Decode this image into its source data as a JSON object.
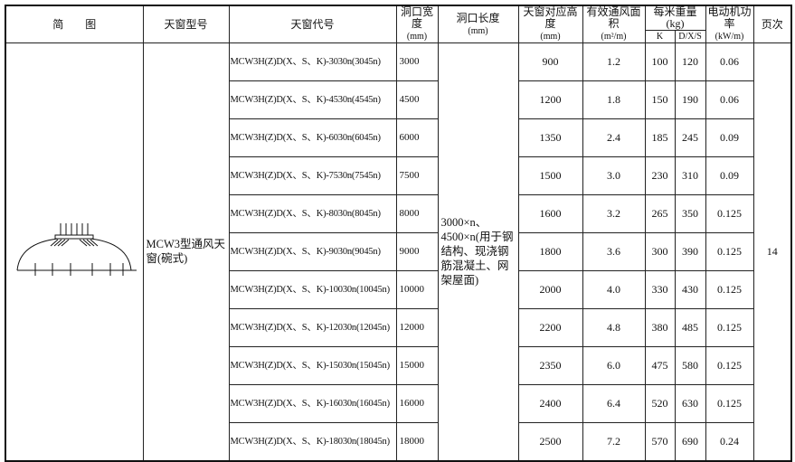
{
  "headers": {
    "diagram": "简　　图",
    "model": "天窗型号",
    "code": "天窗代号",
    "width": "洞口宽度",
    "width_unit": "(mm)",
    "length": "洞口长度",
    "length_unit": "(mm)",
    "height": "天窗对应高度",
    "height_unit": "(mm)",
    "area": "有效通风面积",
    "area_unit": "(m²/m)",
    "weight": "每米重量(kg)",
    "weight_k": "K",
    "weight_dxs": "D/X/S",
    "power": "电动机功率",
    "power_unit": "(kW/m)",
    "page": "页次"
  },
  "model": "MCW3型通风天窗(碗式)",
  "length": "3000×n、4500×n(用于钢结构、现浇钢筋混凝土、网架屋面)",
  "page": "14",
  "rows": [
    {
      "code": "MCW3H(Z)D(X、S、K)-3030n(3045n)",
      "width": "3000",
      "height": "900",
      "area": "1.2",
      "k": "100",
      "dxs": "120",
      "power": "0.06"
    },
    {
      "code": "MCW3H(Z)D(X、S、K)-4530n(4545n)",
      "width": "4500",
      "height": "1200",
      "area": "1.8",
      "k": "150",
      "dxs": "190",
      "power": "0.06"
    },
    {
      "code": "MCW3H(Z)D(X、S、K)-6030n(6045n)",
      "width": "6000",
      "height": "1350",
      "area": "2.4",
      "k": "185",
      "dxs": "245",
      "power": "0.09"
    },
    {
      "code": "MCW3H(Z)D(X、S、K)-7530n(7545n)",
      "width": "7500",
      "height": "1500",
      "area": "3.0",
      "k": "230",
      "dxs": "310",
      "power": "0.09"
    },
    {
      "code": "MCW3H(Z)D(X、S、K)-8030n(8045n)",
      "width": "8000",
      "height": "1600",
      "area": "3.2",
      "k": "265",
      "dxs": "350",
      "power": "0.125"
    },
    {
      "code": "MCW3H(Z)D(X、S、K)-9030n(9045n)",
      "width": "9000",
      "height": "1800",
      "area": "3.6",
      "k": "300",
      "dxs": "390",
      "power": "0.125"
    },
    {
      "code": "MCW3H(Z)D(X、S、K)-10030n(10045n)",
      "width": "10000",
      "height": "2000",
      "area": "4.0",
      "k": "330",
      "dxs": "430",
      "power": "0.125"
    },
    {
      "code": "MCW3H(Z)D(X、S、K)-12030n(12045n)",
      "width": "12000",
      "height": "2200",
      "area": "4.8",
      "k": "380",
      "dxs": "485",
      "power": "0.125"
    },
    {
      "code": "MCW3H(Z)D(X、S、K)-15030n(15045n)",
      "width": "15000",
      "height": "2350",
      "area": "6.0",
      "k": "475",
      "dxs": "580",
      "power": "0.125"
    },
    {
      "code": "MCW3H(Z)D(X、S、K)-16030n(16045n)",
      "width": "16000",
      "height": "2400",
      "area": "6.4",
      "k": "520",
      "dxs": "630",
      "power": "0.125"
    },
    {
      "code": "MCW3H(Z)D(X、S、K)-18030n(18045n)",
      "width": "18000",
      "height": "2500",
      "area": "7.2",
      "k": "570",
      "dxs": "690",
      "power": "0.24"
    }
  ]
}
